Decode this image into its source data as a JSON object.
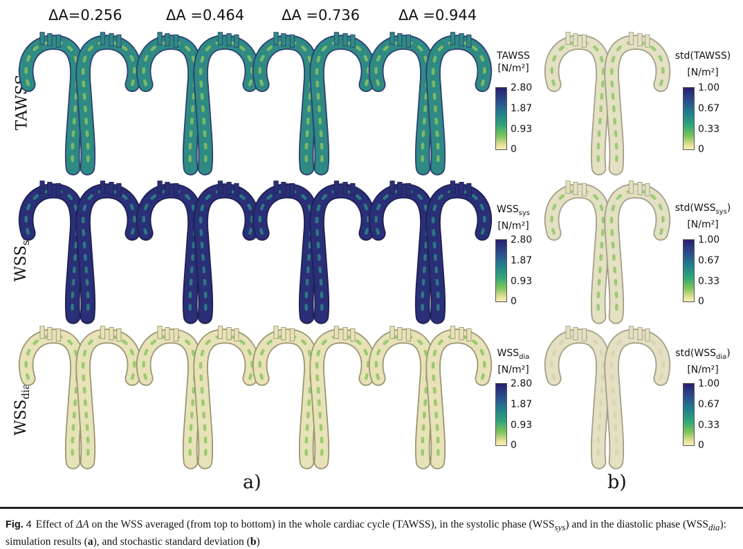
{
  "column_headers": [
    "ΔA=0.256",
    "ΔA =0.464",
    "ΔA =0.736",
    "ΔA =0.944"
  ],
  "rows": [
    {
      "label_main": "TAWSS",
      "label_sub": ""
    },
    {
      "label_main": "WSS",
      "label_sub": "sys"
    },
    {
      "label_main": "WSS",
      "label_sub": "dia"
    }
  ],
  "colorbars_a": [
    {
      "title_main": "TAWSS",
      "title_sub": "",
      "unit": "[N/m²]",
      "ticks": [
        "2.80",
        "1.87",
        "0.93",
        "0"
      ]
    },
    {
      "title_main": "WSS",
      "title_sub": "sys",
      "unit": "[N/m²]",
      "ticks": [
        "2.80",
        "1.87",
        "0.93",
        "0"
      ]
    },
    {
      "title_main": "WSS",
      "title_sub": "dia",
      "unit": "[N/m²]",
      "ticks": [
        "2.80",
        "1.87",
        "0.93",
        "0"
      ]
    }
  ],
  "colorbars_b": [
    {
      "title_pre": "std(TAWSS",
      "title_sub": "",
      "title_post": ")",
      "unit": "[N/m²]",
      "ticks": [
        "1.00",
        "0.67",
        "0.33",
        "0"
      ]
    },
    {
      "title_pre": "std(WSS",
      "title_sub": "sys",
      "title_post": ")",
      "unit": "[N/m²]",
      "ticks": [
        "1.00",
        "0.67",
        "0.33",
        "0"
      ]
    },
    {
      "title_pre": "std(WSS",
      "title_sub": "dia",
      "title_post": ")",
      "unit": "[N/m²]",
      "ticks": [
        "1.00",
        "0.67",
        "0.33",
        "0"
      ]
    }
  ],
  "panel_labels": {
    "a": "a)",
    "b": "b)"
  },
  "caption": {
    "fig_label": "Fig.",
    "fig_number": "4",
    "t1": "Effect of ",
    "delta_a": "ΔA",
    "t2": " on the WSS averaged (from top to bottom) in the whole cardiac cycle (TAWSS), in the systolic phase (WSS",
    "sub_sys": "sys",
    "t3": ") and in the diastolic phase (WSS",
    "sub_dia": "dia",
    "t4": "): simulation results (",
    "bold_a": "a",
    "t5": "), and stochastic standard deviation (",
    "bold_b": "b",
    "t6": ")"
  },
  "colors": {
    "high_wss": "#2a2f78",
    "mid_wss": "#2f8a84",
    "low_wss": "#8cc460",
    "near_zero": "#e7e2b8",
    "std_low": "#e4e0c4"
  }
}
